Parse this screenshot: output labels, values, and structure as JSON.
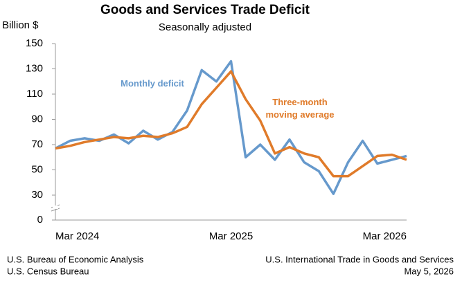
{
  "chart_data": {
    "type": "line",
    "title": "Goods and Services Trade Deficit",
    "subtitle": "Seasonally adjusted",
    "y_label": "Billion $",
    "categories": [
      "Mar 2024",
      null,
      null,
      null,
      null,
      null,
      null,
      null,
      null,
      null,
      null,
      null,
      "Mar 2025",
      null,
      null,
      null,
      null,
      null,
      null,
      null,
      null,
      null,
      null,
      null,
      "Mar 2026"
    ],
    "series": [
      {
        "name": "Monthly deficit",
        "color": "#6699cc",
        "values": [
          67,
          73,
          75,
          73,
          78,
          71,
          81,
          74,
          80,
          97,
          129,
          120,
          136,
          60,
          70,
          58,
          74,
          56,
          49,
          31,
          56,
          73,
          55,
          58,
          61
        ]
      },
      {
        "name": "Three-month moving average",
        "color": "#e07b2a",
        "values": [
          67,
          69,
          72,
          74,
          76,
          75,
          77,
          76,
          79,
          84,
          102,
          115,
          128,
          106,
          89,
          63,
          68,
          63,
          60,
          45,
          45,
          53,
          61,
          62,
          58
        ]
      }
    ],
    "ylim": [
      0,
      150
    ],
    "y_axis_break": [
      0,
      30
    ],
    "yticks": [
      0,
      30,
      50,
      70,
      90,
      110,
      130,
      150
    ],
    "grid": false,
    "footer_left": [
      "U.S. Bureau of Economic Analysis",
      "U.S. Census Bureau"
    ],
    "footer_right": [
      "U.S. International Trade in Goods and Services",
      "May 5, 2026"
    ]
  }
}
